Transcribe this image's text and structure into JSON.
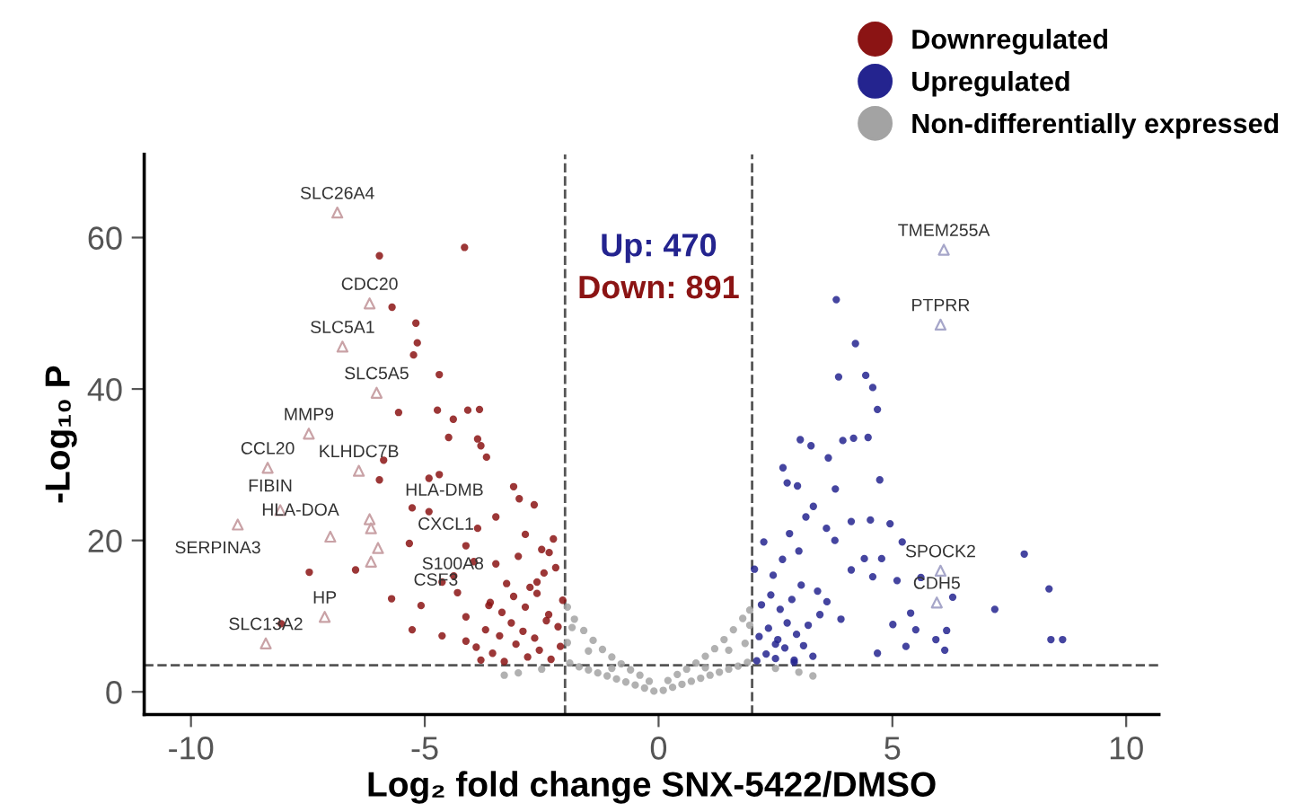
{
  "chart_data": {
    "type": "scatter",
    "xlabel": "Log₂ fold change SNX-5422/DMSO",
    "ylabel": "-Log₁₀ P",
    "xlim": [
      -11,
      10.7
    ],
    "ylim": [
      -3,
      71
    ],
    "xticks": [
      -10,
      -5,
      0,
      5,
      10
    ],
    "yticks": [
      0,
      20,
      40,
      60
    ],
    "grid": false,
    "legend": "top right",
    "marker": "circle",
    "series": [
      {
        "name": "Downregulated",
        "color": "#8b1414",
        "x": [
          -5.97,
          -4.15,
          -5.7,
          -5.19,
          -5.16,
          -5.24,
          -4.69,
          -5.56,
          -4.73,
          -4.08,
          -3.83,
          -4.39,
          -4.49,
          -3.87,
          -3.8,
          -3.68,
          -5.88,
          -4.91,
          -4.69,
          -5.97,
          -5.27,
          -4.91,
          -5.33,
          -7.47,
          -6.48,
          -5.71,
          -8.07,
          -5.27,
          -5.08,
          -4.63,
          -4.12,
          -3.1,
          -2.98,
          -2.66,
          -3.48,
          -2.85,
          -3.87,
          -4.38,
          -3.48,
          -2.34,
          -2.6,
          -4.12,
          -3.63,
          -4.63,
          -4.12,
          -3.8,
          -3.55,
          -3.3,
          -3.05,
          -2.8,
          -2.55,
          -2.3,
          -2.1,
          -3.7,
          -3.4,
          -3.15,
          -2.9,
          -2.65,
          -2.4,
          -2.15,
          -3.6,
          -3.35,
          -3.1,
          -2.85,
          -2.6,
          -2.35,
          -2.05,
          -3.9,
          -3.25,
          -2.75,
          -2.45,
          -2.2,
          -3.0,
          -2.5,
          -2.25,
          -4.3,
          -3.95
        ],
        "values": [
          57.6,
          58.7,
          50.8,
          48.7,
          46.1,
          44.5,
          41.9,
          36.9,
          37.2,
          37.2,
          37.3,
          36.0,
          33.6,
          33.4,
          32.5,
          31.0,
          30.6,
          28.2,
          28.7,
          28.0,
          24.3,
          23.8,
          19.6,
          15.8,
          16.1,
          12.3,
          9.0,
          8.2,
          11.4,
          14.5,
          19.3,
          27.1,
          25.5,
          24.7,
          23.1,
          20.8,
          21.6,
          15.3,
          16.9,
          18.4,
          14.5,
          9.9,
          11.4,
          7.4,
          6.7,
          4.2,
          5.1,
          4.0,
          6.3,
          4.6,
          5.5,
          4.3,
          6.0,
          8.2,
          7.4,
          9.1,
          8.0,
          7.1,
          9.4,
          8.6,
          11.8,
          10.5,
          12.6,
          11.2,
          13.0,
          10.2,
          12.1,
          5.9,
          14.3,
          13.8,
          15.7,
          16.4,
          17.9,
          18.8,
          20.2,
          13.1,
          17.2
        ]
      },
      {
        "name": "Upregulated",
        "color": "#24248f",
        "x": [
          3.8,
          4.21,
          3.85,
          4.43,
          4.58,
          4.68,
          3.03,
          3.26,
          3.94,
          4.17,
          4.48,
          3.63,
          2.66,
          2.75,
          2.97,
          4.73,
          3.78,
          3.31,
          4.12,
          4.53,
          4.95,
          5.21,
          7.82,
          3.59,
          4.4,
          4.77,
          4.58,
          5.1,
          5.61,
          6.29,
          8.35,
          7.19,
          5.39,
          5.01,
          5.5,
          5.93,
          6.16,
          8.39,
          8.64,
          5.29,
          6.12,
          4.68,
          4.12,
          3.77,
          2.1,
          2.3,
          2.5,
          2.7,
          2.9,
          3.1,
          3.3,
          2.15,
          2.35,
          2.55,
          2.75,
          2.95,
          3.2,
          3.45,
          2.2,
          2.4,
          2.6,
          2.85,
          3.05,
          3.4,
          2.05,
          2.45,
          2.65,
          3.0,
          3.6,
          2.25,
          2.8,
          3.15,
          3.9,
          2.5,
          2.9
        ],
        "values": [
          51.8,
          46.0,
          41.6,
          41.8,
          40.2,
          37.3,
          33.3,
          32.5,
          33.2,
          33.5,
          33.6,
          30.9,
          29.6,
          27.6,
          27.2,
          28.0,
          26.8,
          24.5,
          22.5,
          22.7,
          22.2,
          19.8,
          18.2,
          21.6,
          17.6,
          17.6,
          15.2,
          14.7,
          15.1,
          12.5,
          13.6,
          10.9,
          10.4,
          8.9,
          8.2,
          6.9,
          8.1,
          6.9,
          6.9,
          6.0,
          5.5,
          5.1,
          16.1,
          20.0,
          4.1,
          5.0,
          4.4,
          5.8,
          4.2,
          6.1,
          4.7,
          7.3,
          8.4,
          6.9,
          9.1,
          7.6,
          8.8,
          10.2,
          11.5,
          12.8,
          10.9,
          12.2,
          14.1,
          13.3,
          16.2,
          15.4,
          17.5,
          18.6,
          11.9,
          19.8,
          20.9,
          23.1,
          9.6,
          6.3,
          3.9
        ]
      },
      {
        "name": "Non-differentially expressed",
        "color": "#a3a3a3",
        "x": [
          -1.95,
          -1.8,
          -1.6,
          -1.4,
          -1.2,
          -1.0,
          -0.8,
          -0.6,
          -0.4,
          -0.2,
          0.0,
          0.2,
          0.4,
          0.6,
          0.8,
          1.0,
          1.2,
          1.4,
          1.6,
          1.8,
          1.95,
          -1.9,
          -1.7,
          -1.5,
          -1.3,
          -1.1,
          -0.9,
          -0.7,
          -0.5,
          -0.3,
          -0.1,
          0.1,
          0.3,
          0.5,
          0.7,
          0.9,
          1.1,
          1.3,
          1.5,
          1.7,
          1.9,
          -1.95,
          -1.85,
          1.85,
          1.95,
          -2.5,
          -3.0,
          -3.3,
          2.5,
          3.0,
          3.3,
          -1.5,
          -1.0,
          1.0,
          1.5
        ],
        "values": [
          11.2,
          9.6,
          8.1,
          6.8,
          5.6,
          4.6,
          3.7,
          2.9,
          2.2,
          1.4,
          null,
          1.5,
          2.3,
          3.0,
          3.8,
          4.7,
          5.7,
          6.9,
          8.2,
          9.7,
          10.8,
          3.8,
          3.3,
          2.9,
          2.5,
          2.1,
          1.7,
          1.3,
          0.9,
          0.5,
          0.1,
          0.2,
          0.6,
          1.0,
          1.4,
          1.8,
          2.2,
          2.6,
          3.0,
          3.4,
          3.9,
          6.5,
          8.5,
          6.4,
          8.8,
          3.0,
          2.5,
          2.2,
          3.1,
          2.6,
          2.1,
          5.4,
          3.1,
          3.2,
          5.5
        ]
      },
      {
        "color": "#c9a2a6",
        "marker": "triangle",
        "x": [
          -6.87,
          -6.18,
          -6.76,
          -6.03,
          -7.48,
          -8.36,
          -6.41,
          -6.18,
          -6.15,
          -8.09,
          -9.0,
          -7.02,
          -6.0,
          -6.15,
          -7.14,
          -8.4
        ],
        "values": [
          63.3,
          51.3,
          45.6,
          39.5,
          34.1,
          29.6,
          29.2,
          22.8,
          21.6,
          24.0,
          22.1,
          20.5,
          19.0,
          17.2,
          9.9,
          6.4
        ]
      },
      {
        "color": "#a6a6c9",
        "marker": "triangle",
        "x": [
          6.1,
          6.03,
          6.03,
          5.95
        ],
        "values": [
          58.4,
          48.5,
          16.0,
          11.8
        ]
      }
    ],
    "ref_lines": [
      {
        "axis": "x",
        "value": -2,
        "color": "#555555",
        "line_style": "dashed"
      },
      {
        "axis": "x",
        "value": 2,
        "color": "#555555",
        "line_style": "dashed"
      },
      {
        "axis": "y",
        "value": 3.5,
        "color": "#555555",
        "line_style": "dashed"
      }
    ],
    "annotations": [
      "Up: 470",
      "Down: 891",
      {
        "text": "SLC26A4",
        "x": -6.87,
        "y": 63.3
      },
      {
        "text": "CDC20",
        "x": -6.18,
        "y": 51.3
      },
      {
        "text": "SLC5A1",
        "x": -6.76,
        "y": 45.6
      },
      {
        "text": "SLC5A5",
        "x": -6.03,
        "y": 39.5
      },
      {
        "text": "MMP9",
        "x": -7.48,
        "y": 34.1
      },
      {
        "text": "CCL20",
        "x": -8.36,
        "y": 29.6
      },
      {
        "text": "KLHDC7B",
        "x": -6.41,
        "y": 29.2
      },
      {
        "text": "HLA-DMB",
        "x": -6.18,
        "y": 22.8
      },
      {
        "text": "CXCL1",
        "x": -6.15,
        "y": 21.6
      },
      {
        "text": "FIBIN",
        "x": -8.09,
        "y": 24.0
      },
      {
        "text": "SERPINA3",
        "x": -9.0,
        "y": 22.1
      },
      {
        "text": "HLA-DOA",
        "x": -7.02,
        "y": 20.5
      },
      {
        "text": "S100A8",
        "x": -6.0,
        "y": 19.0
      },
      {
        "text": "CSF3",
        "x": -6.15,
        "y": 17.2
      },
      {
        "text": "HP",
        "x": -7.14,
        "y": 9.9
      },
      {
        "text": "SLC13A2",
        "x": -8.4,
        "y": 6.4
      },
      {
        "text": "TMEM255A",
        "x": 6.1,
        "y": 58.4
      },
      {
        "text": "PTPRR",
        "x": 6.03,
        "y": 48.5
      },
      {
        "text": "SPOCK2",
        "x": 6.03,
        "y": 16.0
      },
      {
        "text": "CDH5",
        "x": 5.95,
        "y": 11.8
      }
    ]
  }
}
